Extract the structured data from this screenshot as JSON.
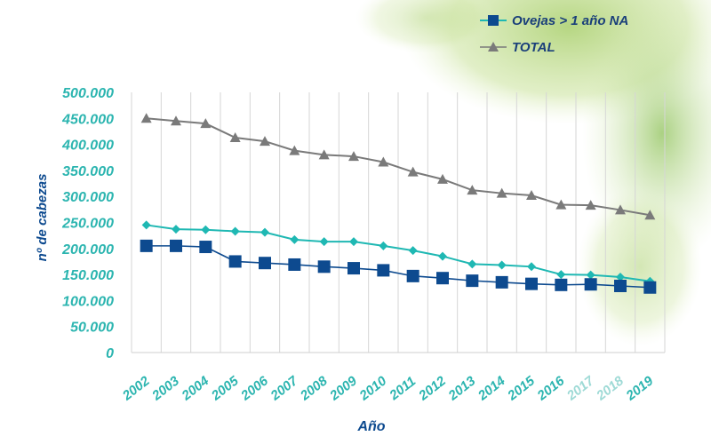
{
  "chart_data": {
    "type": "line",
    "xlabel": "Año",
    "ylabel": "nº de cabezas",
    "ylim": [
      0,
      500000
    ],
    "yticks": [
      0,
      50000,
      100000,
      150000,
      200000,
      250000,
      300000,
      350000,
      400000,
      450000,
      500000
    ],
    "ytick_labels": [
      "0",
      "50.000",
      "100.000",
      "150.000",
      "200.000",
      "250.000",
      "300.000",
      "350.000",
      "400.000",
      "450.000",
      "500.000"
    ],
    "categories": [
      "2002",
      "2003",
      "2004",
      "2005",
      "2006",
      "2007",
      "2008",
      "2009",
      "2010",
      "2011",
      "2012",
      "2013",
      "2014",
      "2015",
      "2016",
      "2017",
      "2018",
      "2019"
    ],
    "grid": "vertical",
    "legend_position": "top-right",
    "series": [
      {
        "name": "",
        "marker": "diamond",
        "color": "#1fb8b3",
        "values": [
          245000,
          237000,
          236000,
          233000,
          231000,
          217000,
          213000,
          213000,
          205000,
          196000,
          185000,
          170000,
          168000,
          165000,
          150000,
          149000,
          145000,
          137000
        ]
      },
      {
        "name": "Ovejas > 1 año NA",
        "marker": "square",
        "color": "#0d4a8f",
        "values": [
          205000,
          205000,
          203000,
          175000,
          172000,
          169000,
          165000,
          162000,
          158000,
          147000,
          143000,
          138000,
          135000,
          132000,
          130000,
          131000,
          128000,
          125000
        ]
      },
      {
        "name": "TOTAL",
        "marker": "triangle",
        "color": "#7a7a7a",
        "values": [
          450000,
          445000,
          440000,
          413000,
          406000,
          388000,
          380000,
          377000,
          366000,
          347000,
          333000,
          312000,
          306000,
          302000,
          284000,
          283000,
          274000,
          264000
        ]
      }
    ]
  }
}
